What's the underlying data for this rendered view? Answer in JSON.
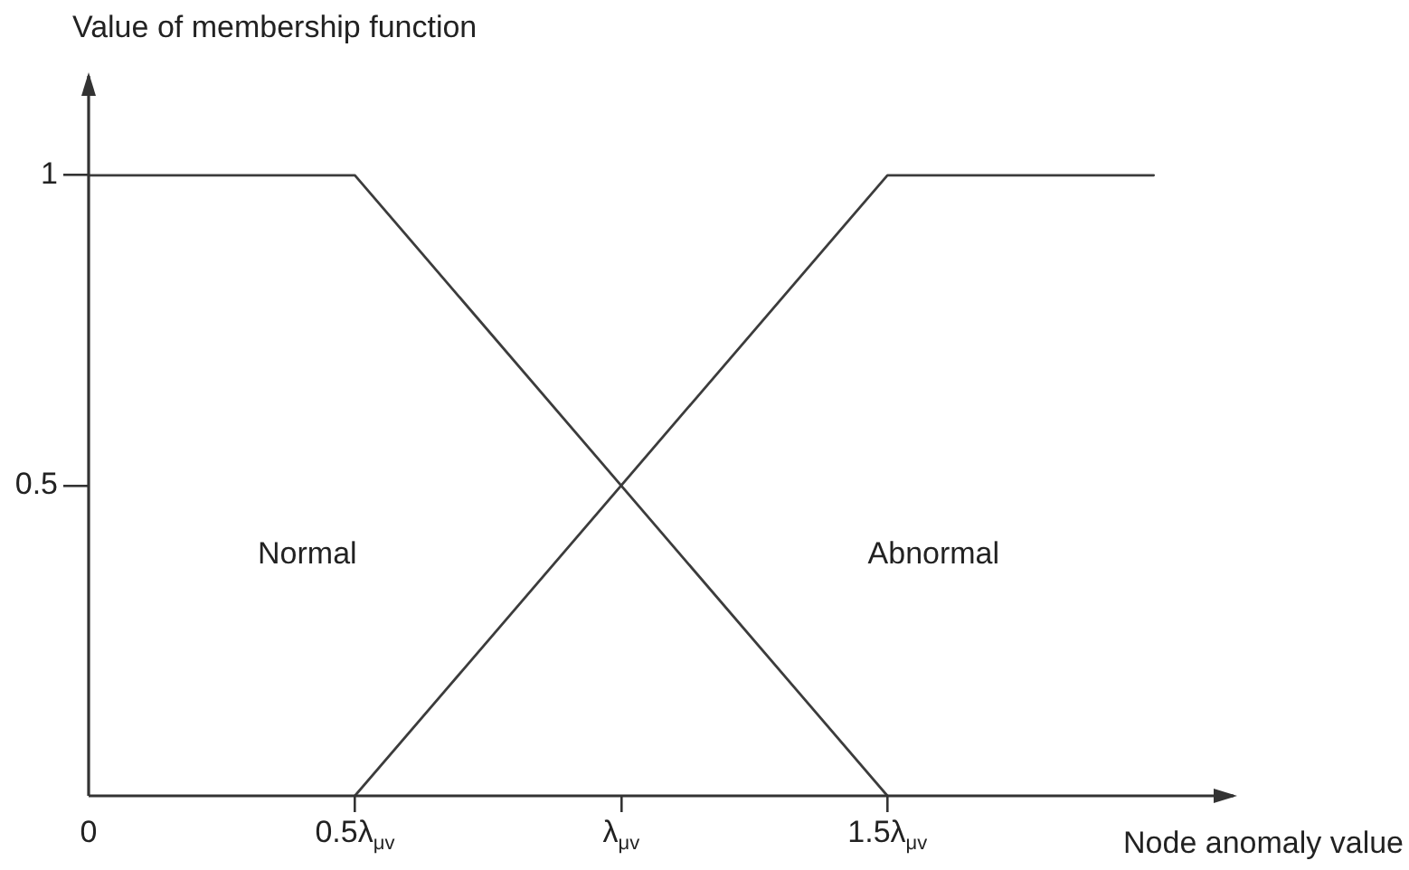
{
  "chart_data": {
    "type": "line",
    "xlabel": "Node anomaly value",
    "ylabel": "Value of membership function",
    "series": [
      {
        "color": "#3c3c3c",
        "x": [
          0,
          0.5,
          1.5
        ],
        "values": [
          1,
          1,
          0
        ]
      },
      {
        "color": "#3c3c3c",
        "x": [
          0.5,
          1.5,
          2
        ],
        "values": [
          0,
          1,
          1
        ]
      }
    ],
    "annotations": [
      "Normal",
      "Abnormal"
    ],
    "xlim": [
      0,
      2.15
    ],
    "ylim": [
      0,
      1.16
    ],
    "xticks": [
      0,
      {
        "value": 0.5,
        "label": "0.5λ$_{μv}$"
      },
      {
        "value": 1,
        "label": "λ$_{μv}$"
      },
      {
        "value": 1.5,
        "label": "1.5λ$_{μv}$"
      }
    ],
    "yticks": [
      0.5,
      1
    ],
    "grid": false,
    "legend": false,
    "marker": "none",
    "line_style": "solid"
  }
}
